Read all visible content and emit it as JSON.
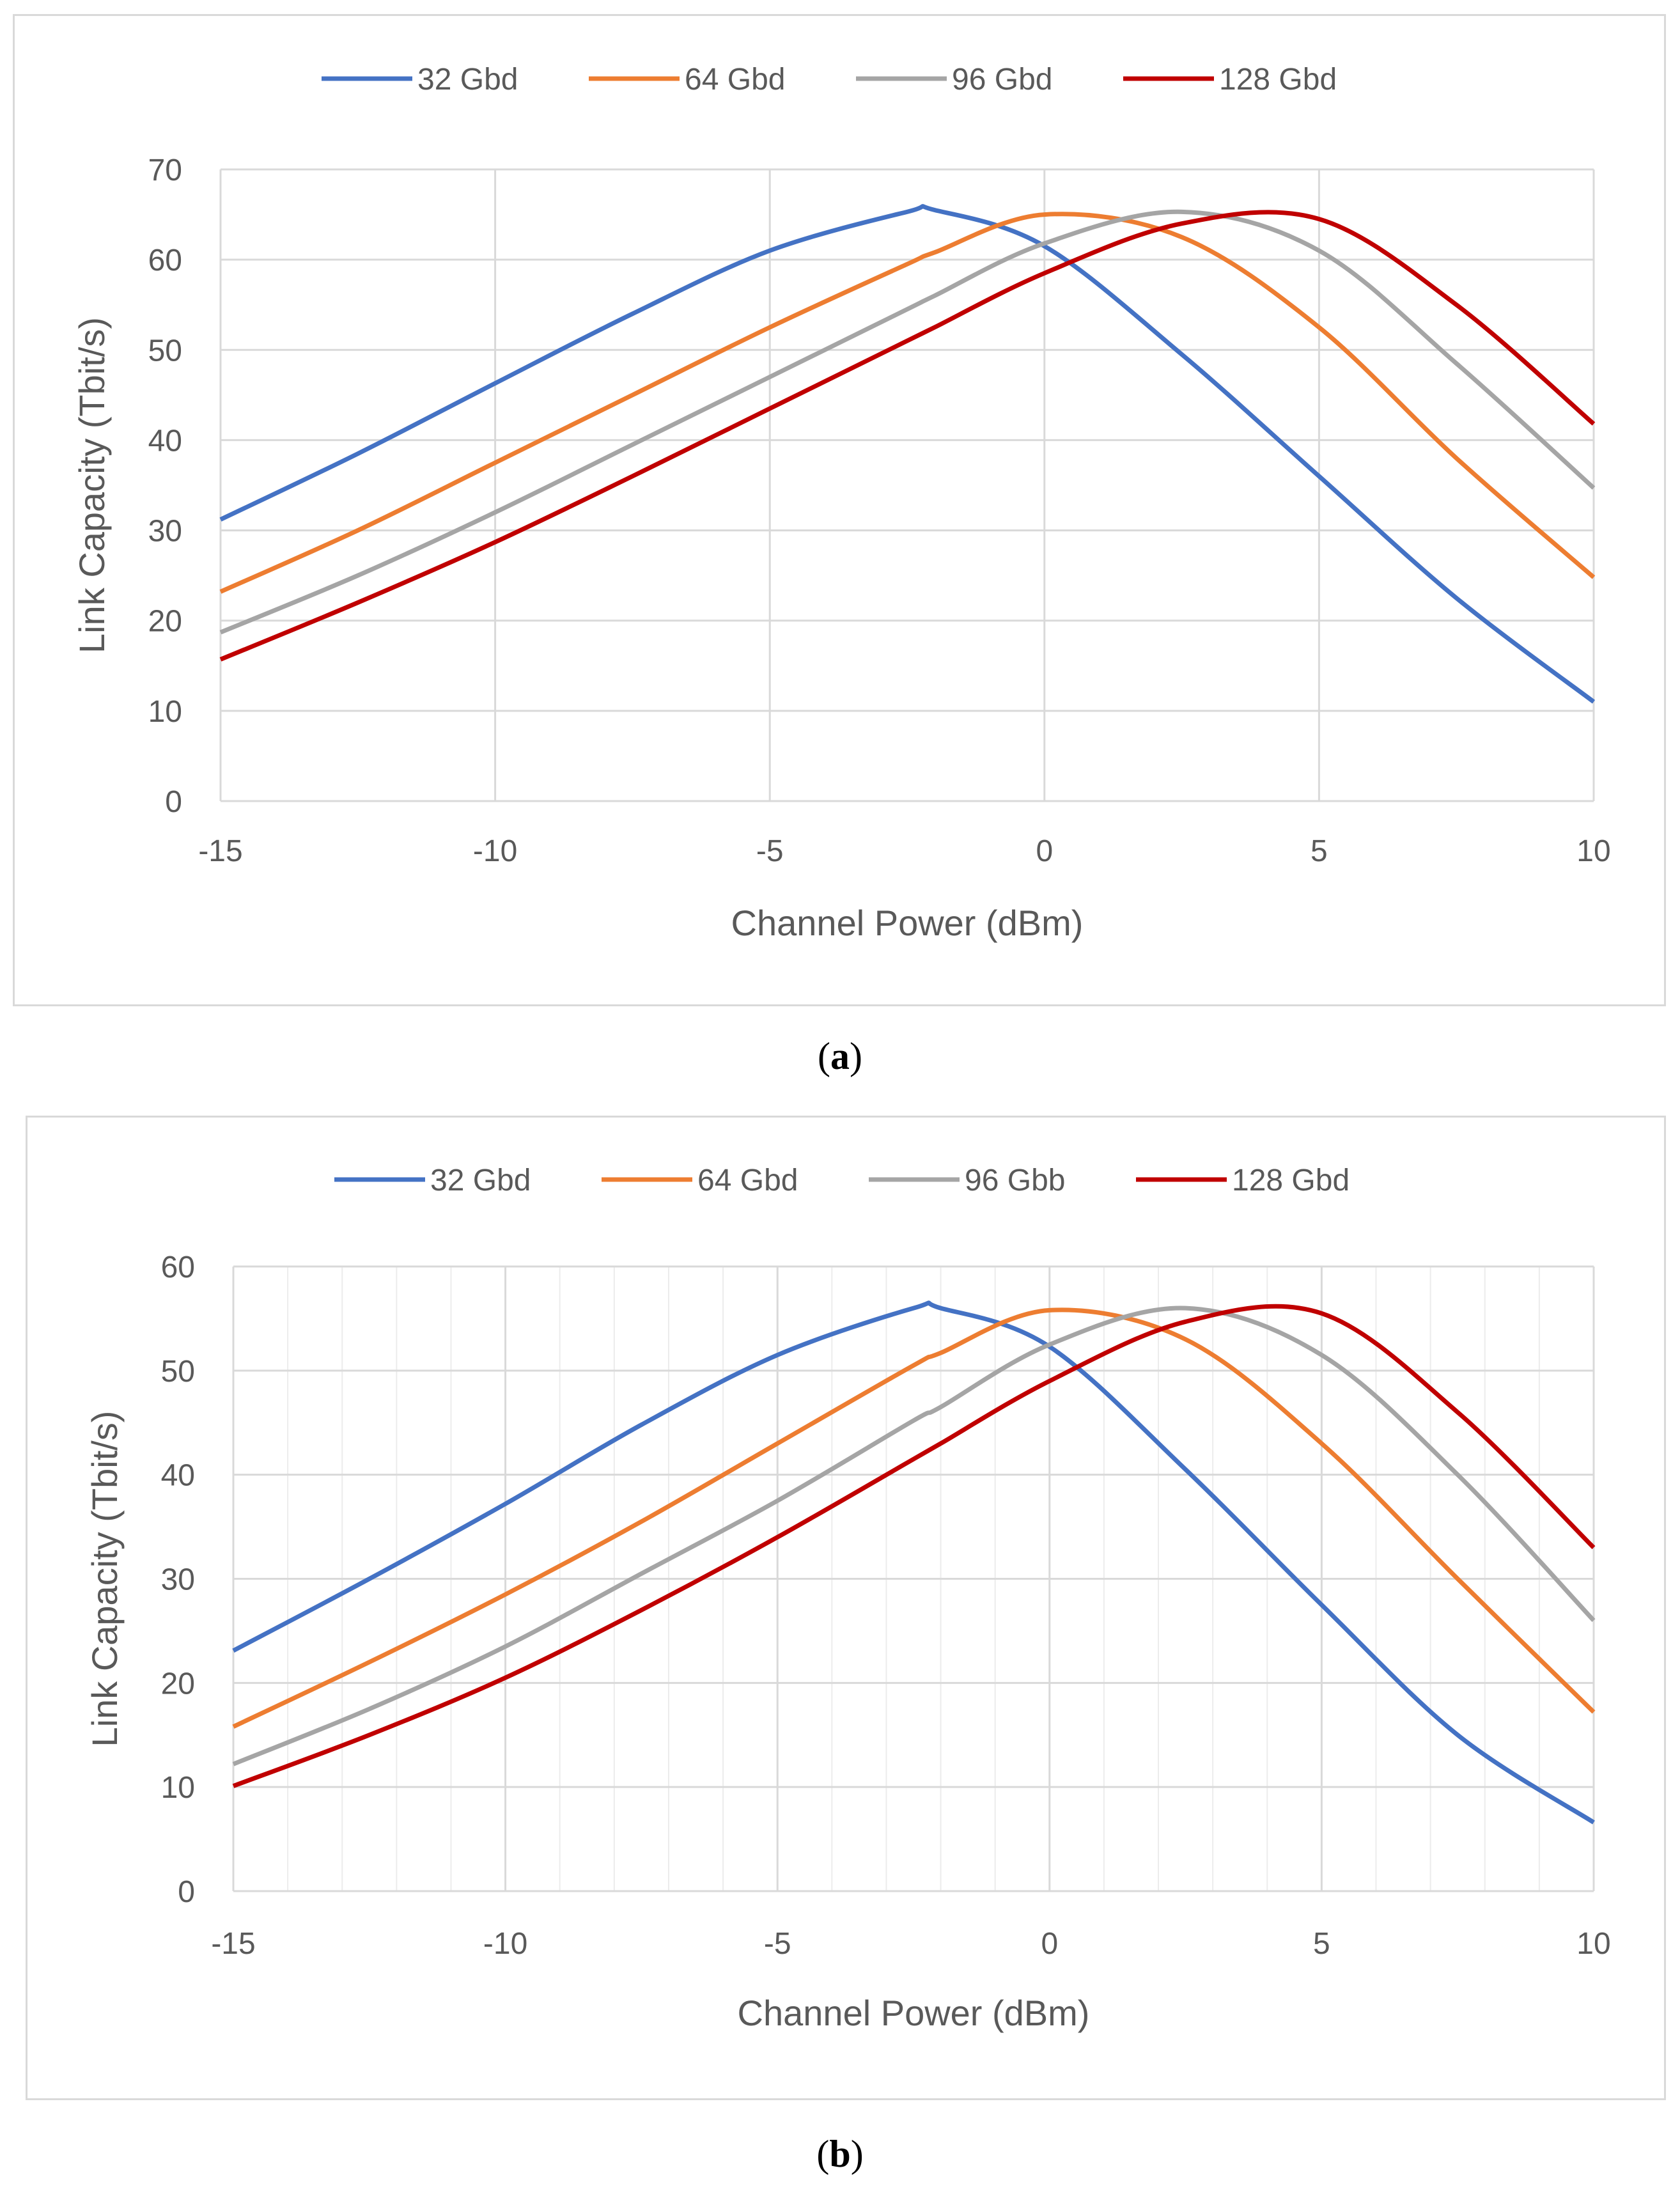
{
  "figure": {
    "captions": [
      {
        "open": "(",
        "letter": "a",
        "close": ")"
      },
      {
        "open": "(",
        "letter": "b",
        "close": ")"
      }
    ]
  },
  "colors": {
    "series": [
      "#4472c4",
      "#ed7d31",
      "#a5a5a5",
      "#c00000"
    ],
    "grid": "#d9d9d9",
    "text": "#595959"
  },
  "chart_data": [
    {
      "type": "line",
      "title": "",
      "xlabel": "Channel Power (dBm)",
      "ylabel": "Link Capacity (Tbit/s)",
      "xlim": [
        -15,
        10
      ],
      "ylim": [
        0,
        70
      ],
      "xticks": [
        -15,
        -10,
        -5,
        0,
        5,
        10
      ],
      "yticks": [
        0,
        10,
        20,
        30,
        40,
        50,
        60,
        70
      ],
      "x_minor_grid": false,
      "legend": "top-center",
      "x": [
        -15,
        -12.5,
        -10,
        -7.5,
        -5,
        -2.5,
        -2,
        0,
        2.5,
        5,
        7.5,
        10
      ],
      "series": [
        {
          "name": "32 Gbd",
          "values": [
            31.2,
            38.5,
            46.3,
            54,
            61,
            65.3,
            65.5,
            61.5,
            49.5,
            36,
            22.5,
            11
          ]
        },
        {
          "name": "64 Gbd",
          "values": [
            23.2,
            30,
            37.5,
            45,
            52.5,
            59.5,
            60.8,
            65,
            62.5,
            52.5,
            38,
            24.8
          ]
        },
        {
          "name": "96 Gbd",
          "values": [
            18.7,
            25,
            32,
            39.5,
            47,
            54.5,
            56,
            61.8,
            65.3,
            61,
            48.5,
            34.7
          ]
        },
        {
          "name": "128 Gbd",
          "values": [
            15.7,
            22,
            28.7,
            36,
            43.5,
            51,
            52.5,
            58.5,
            64,
            64.5,
            55,
            41.8
          ]
        }
      ]
    },
    {
      "type": "line",
      "title": "",
      "xlabel": "Channel Power (dBm)",
      "ylabel": "Link Capacity (Tbit/s)",
      "xlim": [
        -15,
        10
      ],
      "ylim": [
        0,
        60
      ],
      "xticks": [
        -15,
        -10,
        -5,
        0,
        5,
        10
      ],
      "yticks": [
        0,
        10,
        20,
        30,
        40,
        50,
        60
      ],
      "x_minor_grid": true,
      "legend": "top-center",
      "x": [
        -15,
        -12.5,
        -10,
        -7.5,
        -5,
        -2.5,
        -2,
        0,
        2.5,
        5,
        7.5,
        10
      ],
      "series": [
        {
          "name": "32 Gbd",
          "values": [
            23.1,
            30,
            37.2,
            44.8,
            51.5,
            56,
            56,
            52.3,
            40.5,
            27.5,
            15,
            6.6
          ]
        },
        {
          "name": "64 Gbd",
          "values": [
            15.8,
            22,
            28.5,
            35.5,
            43,
            50.5,
            51.7,
            55.8,
            53,
            43,
            30,
            17.2
          ]
        },
        {
          "name": "96 Gbb",
          "values": [
            12.2,
            17.5,
            23.5,
            30.5,
            37.5,
            45.2,
            46.5,
            52.5,
            56,
            51.5,
            40,
            26
          ]
        },
        {
          "name": "128 Gbd",
          "values": [
            10.1,
            15,
            20.5,
            27,
            34,
            41.5,
            43,
            49,
            54.7,
            55.5,
            46,
            33
          ]
        }
      ]
    }
  ]
}
